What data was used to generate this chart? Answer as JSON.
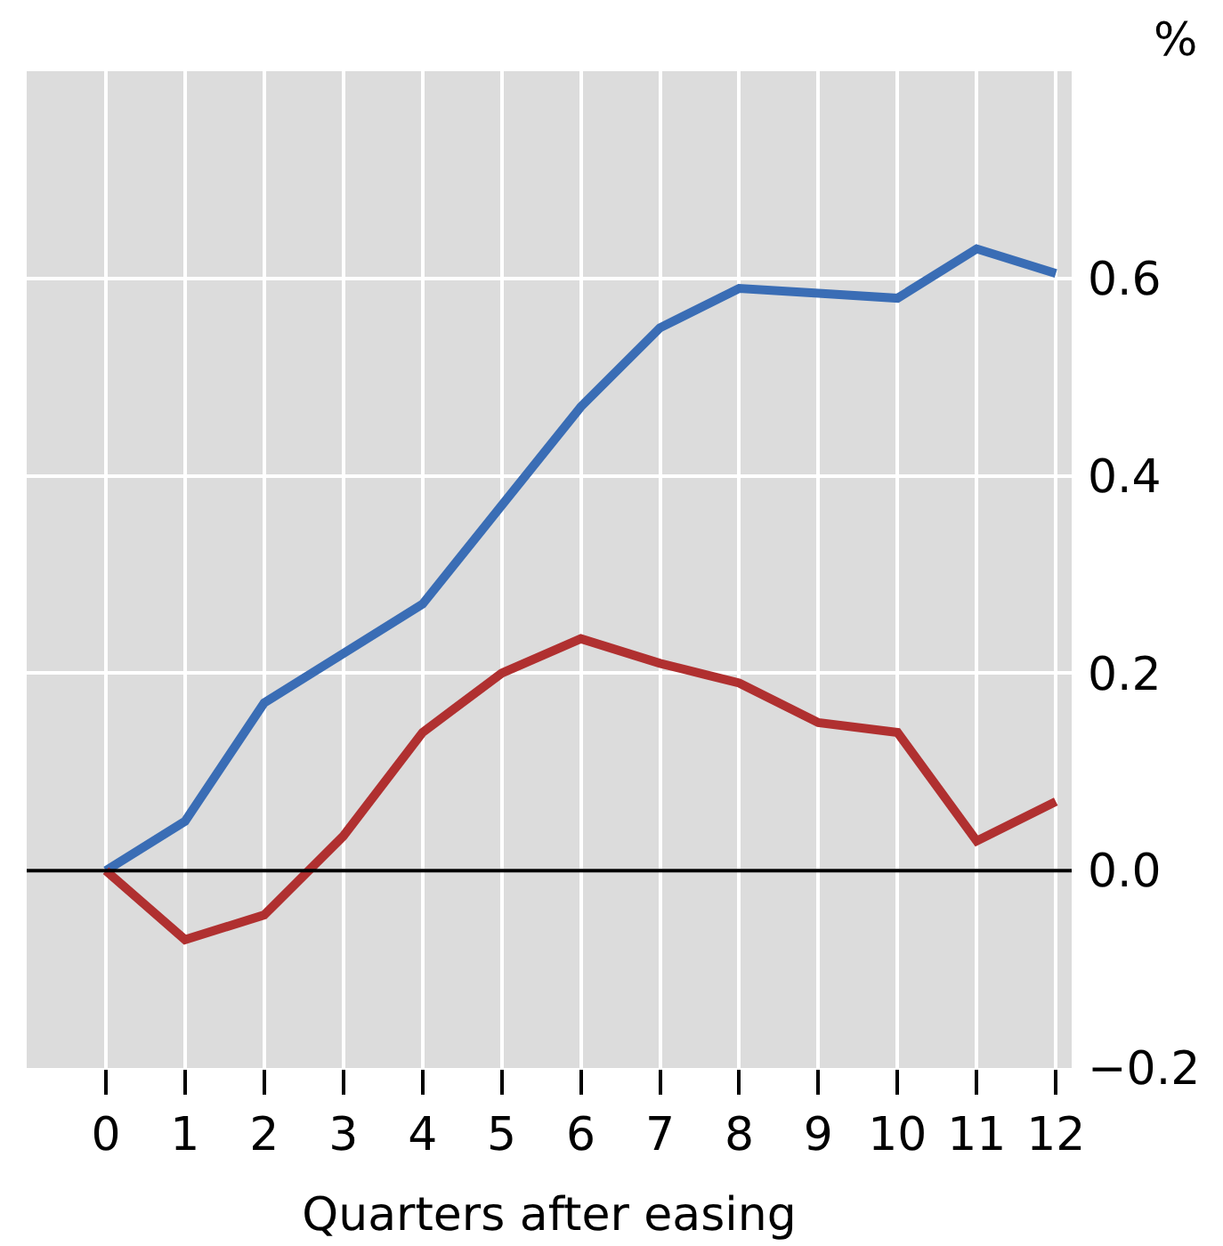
{
  "chart_data": {
    "type": "line",
    "xlabel": "Quarters after easing",
    "ylabel": "%",
    "x": [
      0,
      1,
      2,
      3,
      4,
      5,
      6,
      7,
      8,
      9,
      10,
      11,
      12
    ],
    "series": [
      {
        "color": "#3a6db5",
        "values": [
          0,
          0.05,
          0.17,
          0.22,
          0.27,
          0.37,
          0.47,
          0.55,
          0.59,
          0.585,
          0.58,
          0.63,
          0.605
        ]
      },
      {
        "color": "#b03030",
        "values": [
          0,
          -0.07,
          -0.045,
          0.035,
          0.14,
          0.2,
          0.235,
          0.21,
          0.19,
          0.15,
          0.14,
          0.03,
          0.07
        ]
      }
    ],
    "xlim": [
      -1,
      12.2
    ],
    "xticks": [
      0,
      1,
      2,
      3,
      4,
      5,
      6,
      7,
      8,
      9,
      10,
      11,
      12
    ],
    "ylim": [
      -0.2,
      0.81
    ],
    "yticks": [
      {
        "value": -0.2,
        "label": "−0.2"
      },
      {
        "value": 0,
        "label": "0.0"
      },
      {
        "value": 0.2,
        "label": "0.2"
      },
      {
        "value": 0.4,
        "label": "0.4"
      },
      {
        "value": 0.6,
        "label": "0.6"
      }
    ],
    "ref_lines": [
      {
        "axis": "y",
        "value": 0,
        "color": "#000000"
      }
    ],
    "grid": true,
    "marker": "none",
    "line_style": "solid"
  }
}
